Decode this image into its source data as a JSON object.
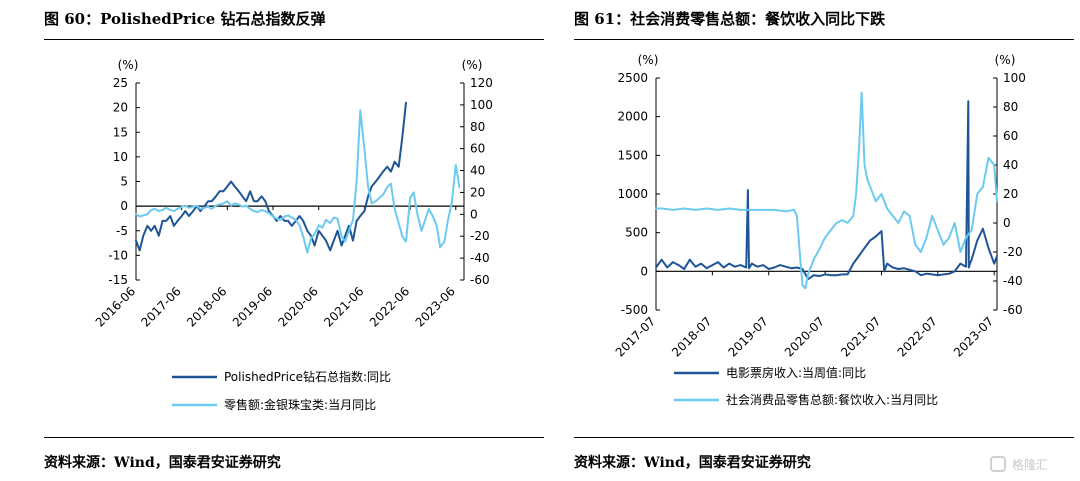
{
  "figures": [
    {
      "title": "图 60：PolishedPrice 钻石总指数反弹",
      "source": "资料来源：Wind，国泰君安证券研究"
    },
    {
      "title": "图 61：社会消费零售总额：餐饮收入同比下跌",
      "source": "资料来源：Wind，国泰君安证券研究"
    }
  ],
  "watermark": "格隆汇",
  "colors": {
    "dark_blue": "#1f5597",
    "light_blue": "#6ccaf0",
    "axis": "#000000"
  },
  "chart_data": [
    {
      "type": "line",
      "left_axis": {
        "unit": "(%)",
        "ylim": [
          -15,
          25
        ],
        "ticks": [
          -15,
          -10,
          -5,
          0,
          5,
          10,
          15,
          20,
          25
        ]
      },
      "right_axis": {
        "unit": "(%)",
        "ylim": [
          -60,
          120
        ],
        "ticks": [
          -60,
          -40,
          -20,
          0,
          20,
          40,
          60,
          80,
          100,
          120
        ]
      },
      "xlim": [
        2016.42,
        2023.6
      ],
      "x_ticks": [
        {
          "x": 2016.42,
          "label": "2016-06"
        },
        {
          "x": 2017.42,
          "label": "2017-06"
        },
        {
          "x": 2018.42,
          "label": "2018-06"
        },
        {
          "x": 2019.42,
          "label": "2019-06"
        },
        {
          "x": 2020.42,
          "label": "2020-06"
        },
        {
          "x": 2021.42,
          "label": "2021-06"
        },
        {
          "x": 2022.42,
          "label": "2022-06"
        },
        {
          "x": 2023.42,
          "label": "2023-06"
        }
      ],
      "series": [
        {
          "name": "PolishedPrice钻石总指数:同比",
          "axis": "left",
          "color": "#1f5597",
          "width": 2,
          "x": [
            2016.42,
            2016.5,
            2016.58,
            2016.67,
            2016.75,
            2016.83,
            2016.92,
            2017.0,
            2017.08,
            2017.17,
            2017.25,
            2017.33,
            2017.42,
            2017.5,
            2017.58,
            2017.67,
            2017.75,
            2017.83,
            2017.92,
            2018.0,
            2018.08,
            2018.17,
            2018.25,
            2018.33,
            2018.42,
            2018.5,
            2018.58,
            2018.67,
            2018.75,
            2018.83,
            2018.92,
            2019.0,
            2019.08,
            2019.17,
            2019.25,
            2019.33,
            2019.42,
            2019.5,
            2019.58,
            2019.67,
            2019.75,
            2019.83,
            2019.92,
            2020.0,
            2020.08,
            2020.17,
            2020.25,
            2020.33,
            2020.42,
            2020.5,
            2020.58,
            2020.67,
            2020.75,
            2020.83,
            2020.92,
            2021.0,
            2021.08,
            2021.17,
            2021.25,
            2021.33,
            2021.42,
            2021.5,
            2021.58,
            2021.67,
            2021.75,
            2021.83,
            2021.92,
            2022.0,
            2022.08,
            2022.17,
            2022.25,
            2022.33
          ],
          "y": [
            -7,
            -9,
            -6,
            -4,
            -5,
            -4,
            -6,
            -3,
            -3,
            -2,
            -4,
            -3,
            -2,
            -1,
            -2,
            -1,
            0,
            -1,
            0,
            1,
            1,
            2,
            3,
            3,
            4,
            5,
            4,
            3,
            2,
            1,
            3,
            1,
            1,
            2,
            1,
            -1,
            -2,
            -3,
            -2,
            -3,
            -3,
            -4,
            -3,
            -2,
            -3,
            -5,
            -6,
            -8,
            -5,
            -6,
            -7,
            -9,
            -7,
            -5,
            -8,
            -6,
            -4,
            -7,
            -3,
            -2,
            -1,
            2,
            4,
            5,
            6,
            7,
            8,
            7,
            9,
            8,
            14,
            21
          ]
        },
        {
          "name": "零售额:金银珠宝类:当月同比",
          "axis": "right",
          "color": "#6ccaf0",
          "width": 2,
          "x": [
            2016.42,
            2016.5,
            2016.58,
            2016.67,
            2016.75,
            2016.83,
            2016.92,
            2017.0,
            2017.08,
            2017.17,
            2017.25,
            2017.33,
            2017.42,
            2017.5,
            2017.58,
            2017.67,
            2017.75,
            2017.83,
            2017.92,
            2018.0,
            2018.08,
            2018.17,
            2018.25,
            2018.33,
            2018.42,
            2018.5,
            2018.58,
            2018.67,
            2018.75,
            2018.83,
            2018.92,
            2019.0,
            2019.08,
            2019.17,
            2019.25,
            2019.33,
            2019.42,
            2019.5,
            2019.58,
            2019.67,
            2019.75,
            2019.83,
            2019.92,
            2020.0,
            2020.08,
            2020.17,
            2020.25,
            2020.33,
            2020.42,
            2020.5,
            2020.58,
            2020.67,
            2020.75,
            2020.83,
            2020.92,
            2021.0,
            2021.08,
            2021.17,
            2021.25,
            2021.33,
            2021.42,
            2021.5,
            2021.58,
            2021.67,
            2021.75,
            2021.83,
            2021.92,
            2022.0,
            2022.08,
            2022.17,
            2022.25,
            2022.33,
            2022.42,
            2022.5,
            2022.58,
            2022.67,
            2022.75,
            2022.83,
            2022.92,
            2023.0,
            2023.08,
            2023.17,
            2023.25,
            2023.33,
            2023.42,
            2023.5
          ],
          "y": [
            0,
            -2,
            -1,
            0,
            4,
            5,
            3,
            4,
            6,
            4,
            3,
            5,
            7,
            8,
            6,
            7,
            8,
            5,
            6,
            7,
            5,
            8,
            9,
            10,
            12,
            8,
            10,
            9,
            7,
            8,
            5,
            3,
            2,
            4,
            3,
            1,
            -2,
            -4,
            -5,
            -2,
            -1,
            -3,
            -5,
            -10,
            -20,
            -35,
            -22,
            -18,
            -10,
            -12,
            -5,
            -8,
            -3,
            -4,
            -20,
            -25,
            -15,
            -5,
            30,
            95,
            60,
            25,
            10,
            12,
            15,
            18,
            25,
            28,
            5,
            -8,
            -20,
            -25,
            15,
            20,
            0,
            -15,
            -5,
            5,
            -2,
            -10,
            -30,
            -25,
            -5,
            10,
            45,
            25
          ]
        }
      ],
      "legend_position": "bottom"
    },
    {
      "type": "line",
      "left_axis": {
        "unit": "(%)",
        "ylim": [
          -500,
          2500
        ],
        "ticks": [
          -500,
          0,
          500,
          1000,
          1500,
          2000,
          2500
        ]
      },
      "right_axis": {
        "unit": "(%)",
        "ylim": [
          -60,
          100
        ],
        "ticks": [
          -60,
          -40,
          -20,
          0,
          20,
          40,
          60,
          80,
          100
        ]
      },
      "xlim": [
        2017.5,
        2023.55
      ],
      "x_ticks": [
        {
          "x": 2017.5,
          "label": "2017-07"
        },
        {
          "x": 2018.5,
          "label": "2018-07"
        },
        {
          "x": 2019.5,
          "label": "2019-07"
        },
        {
          "x": 2020.5,
          "label": "2020-07"
        },
        {
          "x": 2021.5,
          "label": "2021-07"
        },
        {
          "x": 2022.5,
          "label": "2022-07"
        },
        {
          "x": 2023.5,
          "label": "2023-07"
        }
      ],
      "series": [
        {
          "name": "电影票房收入:当周值:同比",
          "axis": "left",
          "color": "#1f5597",
          "width": 2,
          "x": [
            2017.5,
            2017.6,
            2017.7,
            2017.8,
            2017.9,
            2018.0,
            2018.1,
            2018.2,
            2018.3,
            2018.4,
            2018.5,
            2018.6,
            2018.7,
            2018.8,
            2018.9,
            2019.0,
            2019.1,
            2019.13,
            2019.15,
            2019.2,
            2019.3,
            2019.4,
            2019.5,
            2019.6,
            2019.7,
            2019.8,
            2019.9,
            2020.0,
            2020.1,
            2020.2,
            2020.3,
            2020.4,
            2020.5,
            2020.6,
            2020.7,
            2020.8,
            2020.9,
            2021.0,
            2021.1,
            2021.2,
            2021.3,
            2021.4,
            2021.5,
            2021.55,
            2021.6,
            2021.7,
            2021.8,
            2021.9,
            2022.0,
            2022.1,
            2022.2,
            2022.3,
            2022.4,
            2022.5,
            2022.6,
            2022.7,
            2022.8,
            2022.9,
            2023.0,
            2023.04,
            2023.05,
            2023.07,
            2023.1,
            2023.2,
            2023.3,
            2023.4,
            2023.5,
            2023.55
          ],
          "y": [
            50,
            150,
            50,
            120,
            80,
            30,
            150,
            60,
            100,
            40,
            80,
            120,
            50,
            100,
            60,
            80,
            50,
            1050,
            40,
            100,
            60,
            80,
            30,
            50,
            80,
            60,
            40,
            50,
            30,
            -100,
            -50,
            -60,
            -40,
            -50,
            -50,
            -40,
            -40,
            100,
            200,
            300,
            400,
            450,
            520,
            0,
            100,
            50,
            30,
            40,
            20,
            0,
            -50,
            -30,
            -40,
            -50,
            -40,
            -30,
            0,
            100,
            60,
            2200,
            50,
            100,
            150,
            400,
            550,
            300,
            100,
            200
          ]
        },
        {
          "name": "社会消费品零售总额:餐饮收入:当月同比",
          "axis": "right",
          "color": "#6ccaf0",
          "width": 2,
          "x": [
            2017.5,
            2017.6,
            2017.8,
            2018.0,
            2018.2,
            2018.4,
            2018.6,
            2018.8,
            2019.0,
            2019.2,
            2019.4,
            2019.6,
            2019.8,
            2019.95,
            2020.0,
            2020.05,
            2020.1,
            2020.15,
            2020.2,
            2020.3,
            2020.4,
            2020.5,
            2020.6,
            2020.7,
            2020.8,
            2020.9,
            2021.0,
            2021.05,
            2021.1,
            2021.15,
            2021.2,
            2021.25,
            2021.3,
            2021.4,
            2021.5,
            2021.6,
            2021.7,
            2021.8,
            2021.9,
            2022.0,
            2022.1,
            2022.2,
            2022.3,
            2022.4,
            2022.5,
            2022.6,
            2022.7,
            2022.8,
            2022.9,
            2023.0,
            2023.1,
            2023.2,
            2023.3,
            2023.4,
            2023.5,
            2023.55
          ],
          "y": [
            10,
            10,
            9,
            10,
            9,
            10,
            9,
            10,
            9,
            9,
            9,
            9,
            8,
            9,
            5,
            -20,
            -43,
            -45,
            -35,
            -25,
            -18,
            -10,
            -5,
            0,
            2,
            0,
            5,
            20,
            50,
            90,
            40,
            30,
            25,
            15,
            20,
            10,
            5,
            0,
            8,
            5,
            -15,
            -20,
            -10,
            5,
            -5,
            -15,
            -10,
            0,
            -20,
            -10,
            -5,
            20,
            25,
            45,
            40,
            15
          ]
        }
      ],
      "legend_position": "bottom"
    }
  ]
}
